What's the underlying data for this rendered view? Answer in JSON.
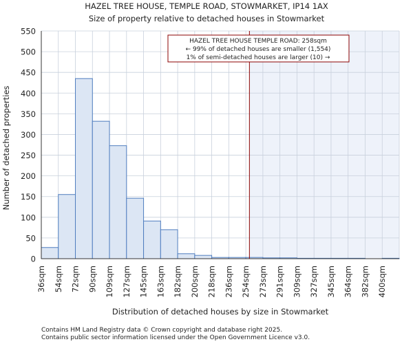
{
  "chart_data": {
    "type": "bar",
    "title": "HAZEL TREE HOUSE, TEMPLE ROAD, STOWMARKET, IP14 1AX",
    "subtitle": "Size of property relative to detached houses in Stowmarket",
    "xlabel": "Distribution of detached houses by size in Stowmarket",
    "ylabel": "Number of detached properties",
    "ylim": [
      0,
      550
    ],
    "yticks": [
      0,
      50,
      100,
      150,
      200,
      250,
      300,
      350,
      400,
      450,
      500,
      550
    ],
    "categories": [
      "36sqm",
      "54sqm",
      "72sqm",
      "90sqm",
      "109sqm",
      "127sqm",
      "145sqm",
      "163sqm",
      "182sqm",
      "200sqm",
      "218sqm",
      "236sqm",
      "254sqm",
      "273sqm",
      "291sqm",
      "309sqm",
      "327sqm",
      "345sqm",
      "364sqm",
      "382sqm",
      "400sqm"
    ],
    "values": [
      27,
      155,
      435,
      332,
      273,
      146,
      91,
      70,
      12,
      8,
      3,
      3,
      3,
      2,
      2,
      1,
      1,
      1,
      1,
      0,
      1
    ],
    "marker": {
      "value_sqm": 258,
      "label": "HAZEL TREE HOUSE TEMPLE ROAD",
      "color": "#8b0000"
    },
    "annotation": [
      "HAZEL TREE HOUSE TEMPLE ROAD: 258sqm",
      "← 99% of detached houses are smaller (1,554)",
      "1% of semi-detached houses are larger (10) →"
    ],
    "colors": {
      "bar_fill": "#dce6f4",
      "bar_stroke": "#4f7dbf",
      "shade": "#eef2fa",
      "grid": "#c8d0dc",
      "marker": "#8b0000"
    }
  },
  "footer": {
    "line1": "Contains HM Land Registry data © Crown copyright and database right 2025.",
    "line2": "Contains public sector information licensed under the Open Government Licence v3.0."
  }
}
